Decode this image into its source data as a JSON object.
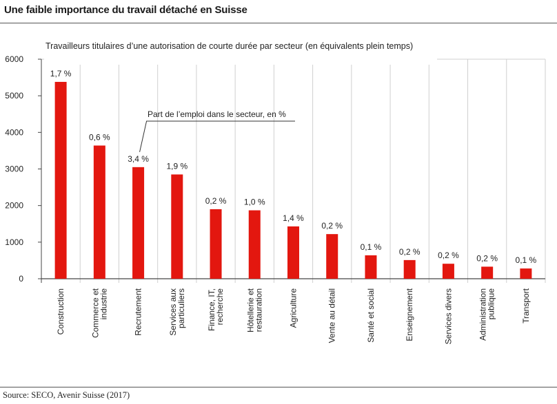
{
  "page": {
    "title": "Une faible importance du travail détaché en Suisse",
    "source": "Source: SECO, Avenir Suisse (2017)"
  },
  "chart_data": {
    "type": "bar",
    "title": "Travailleurs titulaires d’une autorisation de courte durée par secteur (en équivalents plein temps)",
    "annotation": "Part de l’emploi dans le secteur, en %",
    "categories": [
      "Construction",
      "Commerce et industrie",
      "Recrutement",
      "Services aux particuliers",
      "Finance, IT, recherche",
      "Hôtellerie et restauration",
      "Agriculture",
      "Vente au détail",
      "Santé et social",
      "Enseignement",
      "Services divers",
      "Administration publique",
      "Transport"
    ],
    "category_lines": [
      [
        "Construction"
      ],
      [
        "Commerce et",
        "industrie"
      ],
      [
        "Recrutement"
      ],
      [
        "Services aux",
        "particuliers"
      ],
      [
        "Finance, IT,",
        "recherche"
      ],
      [
        "Hôtellerie et",
        "restauration"
      ],
      [
        "Agriculture"
      ],
      [
        "Vente au détail"
      ],
      [
        "Santé et social"
      ],
      [
        "Enseignement"
      ],
      [
        "Services divers"
      ],
      [
        "Administration",
        "publique"
      ],
      [
        "Transport"
      ]
    ],
    "values": [
      5380,
      3640,
      3050,
      2850,
      1900,
      1870,
      1430,
      1220,
      640,
      510,
      410,
      330,
      280
    ],
    "data_labels": [
      "1,7 %",
      "0,6 %",
      "3,4 %",
      "1,9 %",
      "0,2 %",
      "1,0 %",
      "1,4 %",
      "0,2 %",
      "0,1 %",
      "0,2 %",
      "0,2 %",
      "0,2 %",
      "0,1 %"
    ],
    "yticks": [
      0,
      1000,
      2000,
      3000,
      4000,
      5000,
      6000
    ],
    "ylim": [
      0,
      6000
    ],
    "xlabel": "",
    "ylabel": "",
    "grid": "vertical category separators",
    "colors": {
      "bar": "#e3170f",
      "grid": "#cfcfcf",
      "axis": "#444444"
    }
  }
}
